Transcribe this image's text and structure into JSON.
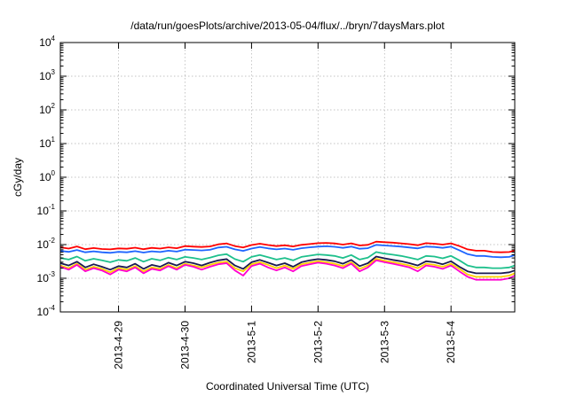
{
  "chart_data": {
    "type": "line",
    "title": "/data/run/goesPlots/archive/2013-05-04/flux/../bryn/7daysMars.plot",
    "xlabel": "Coordinated Universal Time (UTC)",
    "ylabel": "cGy/day",
    "yscale": "log",
    "ylim": [
      0.0001,
      10000
    ],
    "yticks": [
      {
        "base": "10",
        "exp": "-4"
      },
      {
        "base": "10",
        "exp": "-3"
      },
      {
        "base": "10",
        "exp": "-2"
      },
      {
        "base": "10",
        "exp": "-1"
      },
      {
        "base": "10",
        "exp": "0"
      },
      {
        "base": "10",
        "exp": "1"
      },
      {
        "base": "10",
        "exp": "2"
      },
      {
        "base": "10",
        "exp": "3"
      },
      {
        "base": "10",
        "exp": "4"
      }
    ],
    "xlim": [
      "2013-04-28T03:00",
      "2013-05-04T23:00"
    ],
    "xticks": [
      "2013-4-29",
      "2013-4-30",
      "2013-5-1",
      "2013-5-2",
      "2013-5-3",
      "2013-5-4"
    ],
    "grid": true,
    "x": [
      "2013-04-28T03:00",
      "2013-04-28T06:00",
      "2013-04-28T09:00",
      "2013-04-28T12:00",
      "2013-04-28T15:00",
      "2013-04-28T18:00",
      "2013-04-28T21:00",
      "2013-04-29T00:00",
      "2013-04-29T03:00",
      "2013-04-29T06:00",
      "2013-04-29T09:00",
      "2013-04-29T12:00",
      "2013-04-29T15:00",
      "2013-04-29T18:00",
      "2013-04-29T21:00",
      "2013-04-30T00:00",
      "2013-04-30T03:00",
      "2013-04-30T06:00",
      "2013-04-30T09:00",
      "2013-04-30T12:00",
      "2013-04-30T15:00",
      "2013-04-30T18:00",
      "2013-04-30T21:00",
      "2013-05-01T00:00",
      "2013-05-01T03:00",
      "2013-05-01T06:00",
      "2013-05-01T09:00",
      "2013-05-01T12:00",
      "2013-05-01T15:00",
      "2013-05-01T18:00",
      "2013-05-01T21:00",
      "2013-05-02T00:00",
      "2013-05-02T03:00",
      "2013-05-02T06:00",
      "2013-05-02T09:00",
      "2013-05-02T12:00",
      "2013-05-02T15:00",
      "2013-05-02T18:00",
      "2013-05-02T21:00",
      "2013-05-03T00:00",
      "2013-05-03T03:00",
      "2013-05-03T06:00",
      "2013-05-03T09:00",
      "2013-05-03T12:00",
      "2013-05-03T15:00",
      "2013-05-03T18:00",
      "2013-05-03T21:00",
      "2013-05-04T00:00",
      "2013-05-04T03:00",
      "2013-05-04T06:00",
      "2013-05-04T09:00",
      "2013-05-04T12:00",
      "2013-05-04T15:00",
      "2013-05-04T18:00",
      "2013-05-04T21:00",
      "2013-05-04T23:00"
    ],
    "series": [
      {
        "color": "#ff0000",
        "values": [
          0.0083,
          0.0076,
          0.0088,
          0.0073,
          0.0079,
          0.0074,
          0.0072,
          0.0077,
          0.0075,
          0.0081,
          0.0073,
          0.008,
          0.0076,
          0.0083,
          0.0078,
          0.009,
          0.0087,
          0.0085,
          0.0088,
          0.0102,
          0.0108,
          0.009,
          0.0082,
          0.0097,
          0.0106,
          0.0097,
          0.009,
          0.0095,
          0.0088,
          0.0098,
          0.0104,
          0.011,
          0.0112,
          0.0108,
          0.01,
          0.0109,
          0.0094,
          0.0098,
          0.0122,
          0.0118,
          0.0114,
          0.0109,
          0.0103,
          0.0096,
          0.011,
          0.0106,
          0.01,
          0.0109,
          0.009,
          0.0072,
          0.0066,
          0.0066,
          0.006,
          0.0059,
          0.006,
          0.0067
        ]
      },
      {
        "color": "#1e64ff",
        "values": [
          0.0065,
          0.0061,
          0.0069,
          0.0059,
          0.0063,
          0.0059,
          0.0057,
          0.0061,
          0.0059,
          0.0064,
          0.0058,
          0.0063,
          0.006,
          0.0066,
          0.0062,
          0.0071,
          0.0069,
          0.0067,
          0.007,
          0.0082,
          0.0086,
          0.0072,
          0.0065,
          0.0076,
          0.0085,
          0.0077,
          0.0072,
          0.0076,
          0.007,
          0.0078,
          0.0083,
          0.0087,
          0.0089,
          0.0086,
          0.008,
          0.0087,
          0.0075,
          0.0078,
          0.0098,
          0.0094,
          0.0091,
          0.0087,
          0.0082,
          0.0077,
          0.0087,
          0.0085,
          0.008,
          0.0087,
          0.0068,
          0.0052,
          0.0046,
          0.0046,
          0.0043,
          0.0042,
          0.0043,
          0.0049
        ]
      },
      {
        "color": "#1ec08c",
        "values": [
          0.004,
          0.0036,
          0.0044,
          0.0033,
          0.0038,
          0.0034,
          0.003,
          0.0035,
          0.0033,
          0.004,
          0.0031,
          0.0038,
          0.0034,
          0.0041,
          0.0036,
          0.0043,
          0.004,
          0.0036,
          0.0041,
          0.0048,
          0.0052,
          0.0037,
          0.0031,
          0.0043,
          0.0049,
          0.0042,
          0.0036,
          0.004,
          0.0034,
          0.0043,
          0.0047,
          0.0051,
          0.0049,
          0.0046,
          0.004,
          0.0049,
          0.0036,
          0.0041,
          0.006,
          0.0054,
          0.005,
          0.0046,
          0.0041,
          0.0036,
          0.0046,
          0.0044,
          0.0039,
          0.0046,
          0.0034,
          0.0024,
          0.0021,
          0.0021,
          0.002,
          0.002,
          0.0021,
          0.0024
        ]
      },
      {
        "color": "#1a1a50",
        "values": [
          0.0028,
          0.0024,
          0.0031,
          0.0021,
          0.0026,
          0.0022,
          0.0018,
          0.0023,
          0.0021,
          0.0027,
          0.0019,
          0.0025,
          0.0022,
          0.0029,
          0.0024,
          0.0031,
          0.0028,
          0.0024,
          0.0029,
          0.0034,
          0.0037,
          0.0024,
          0.0019,
          0.003,
          0.0035,
          0.0029,
          0.0024,
          0.0028,
          0.0022,
          0.003,
          0.0034,
          0.0037,
          0.0035,
          0.0032,
          0.0027,
          0.0035,
          0.0023,
          0.0028,
          0.0044,
          0.0039,
          0.0035,
          0.0032,
          0.0028,
          0.0024,
          0.0032,
          0.003,
          0.0026,
          0.0032,
          0.0022,
          0.0016,
          0.0014,
          0.0014,
          0.0014,
          0.0014,
          0.0015,
          0.0017
        ]
      },
      {
        "color": "#ffd000",
        "values": [
          0.0024,
          0.002,
          0.0027,
          0.0018,
          0.0022,
          0.0019,
          0.0015,
          0.002,
          0.0018,
          0.0023,
          0.0016,
          0.0021,
          0.0019,
          0.0025,
          0.002,
          0.0027,
          0.0024,
          0.0021,
          0.0025,
          0.0029,
          0.0031,
          0.002,
          0.0016,
          0.0026,
          0.003,
          0.0025,
          0.002,
          0.0024,
          0.0019,
          0.0026,
          0.0029,
          0.0032,
          0.003,
          0.0027,
          0.0023,
          0.003,
          0.0019,
          0.0024,
          0.0038,
          0.0033,
          0.003,
          0.0027,
          0.0024,
          0.002,
          0.0027,
          0.0025,
          0.0022,
          0.0027,
          0.0019,
          0.0013,
          0.0011,
          0.0011,
          0.0011,
          0.0011,
          0.0012,
          0.0014
        ]
      },
      {
        "color": "#ff00d0",
        "values": [
          0.0022,
          0.0018,
          0.0025,
          0.0016,
          0.002,
          0.0017,
          0.0013,
          0.0018,
          0.0016,
          0.0021,
          0.0014,
          0.0019,
          0.0017,
          0.0023,
          0.0018,
          0.0025,
          0.0022,
          0.0018,
          0.0022,
          0.0026,
          0.0028,
          0.0017,
          0.0012,
          0.0023,
          0.0027,
          0.0021,
          0.0017,
          0.0021,
          0.0016,
          0.0023,
          0.0026,
          0.0029,
          0.0027,
          0.0024,
          0.002,
          0.0027,
          0.0016,
          0.0021,
          0.0034,
          0.003,
          0.0027,
          0.0024,
          0.0021,
          0.0016,
          0.0024,
          0.0022,
          0.0019,
          0.0024,
          0.0016,
          0.0011,
          0.0009,
          0.0009,
          0.0009,
          0.0009,
          0.001,
          0.0012
        ]
      }
    ]
  }
}
